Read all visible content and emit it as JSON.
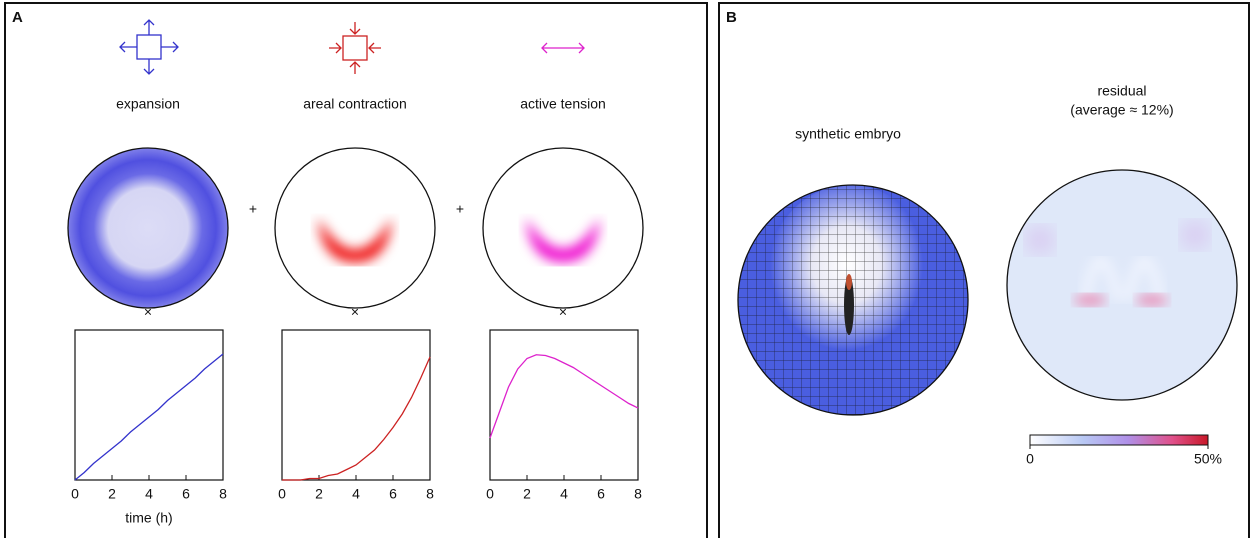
{
  "panel_a": {
    "label": "A",
    "plus_signs": [
      "+",
      "+"
    ],
    "times_signs": [
      "×",
      "×",
      "×"
    ]
  },
  "panel_b": {
    "label": "B",
    "synthetic_title": "synthetic embryo",
    "residual_title": [
      "residual",
      "(average ≈ 12%)"
    ],
    "colorbar": {
      "lim": [
        0,
        50
      ],
      "ticks": [
        0,
        {
          "value": 50,
          "label": "50%"
        }
      ]
    }
  },
  "chart_data": [
    {
      "type": "line",
      "title": "expansion",
      "xlabel": "time (h)",
      "color": "#3333cc",
      "x": [
        0,
        0.5,
        1,
        1.5,
        2,
        2.5,
        3,
        3.5,
        4,
        4.5,
        5,
        5.5,
        6,
        6.5,
        7,
        7.5,
        8
      ],
      "values": [
        0,
        0.05,
        0.11,
        0.16,
        0.21,
        0.26,
        0.32,
        0.37,
        0.42,
        0.47,
        0.53,
        0.58,
        0.63,
        0.68,
        0.74,
        0.79,
        0.84
      ],
      "xlim": [
        0,
        8
      ],
      "xticks": [
        0,
        2,
        4,
        6,
        8
      ],
      "ylim": [
        0,
        1
      ]
    },
    {
      "type": "line",
      "title": "areal contraction",
      "color": "#cc2222",
      "x": [
        0,
        0.5,
        1,
        1.5,
        2,
        2.5,
        3,
        3.5,
        4,
        4.5,
        5,
        5.5,
        6,
        6.5,
        7,
        7.5,
        8
      ],
      "values": [
        0,
        0,
        0,
        0.01,
        0.01,
        0.03,
        0.04,
        0.07,
        0.1,
        0.15,
        0.2,
        0.27,
        0.35,
        0.44,
        0.55,
        0.68,
        0.82
      ],
      "xlim": [
        0,
        8
      ],
      "xticks": [
        0,
        2,
        4,
        6,
        8
      ],
      "ylim": [
        0,
        1
      ]
    },
    {
      "type": "line",
      "title": "active tension",
      "color": "#dd22cc",
      "x": [
        0,
        0.5,
        1,
        1.5,
        2,
        2.5,
        3,
        3.5,
        4,
        4.5,
        5,
        5.5,
        6,
        6.5,
        7,
        7.5,
        8
      ],
      "values": [
        0.28,
        0.45,
        0.62,
        0.74,
        0.81,
        0.835,
        0.83,
        0.81,
        0.78,
        0.75,
        0.71,
        0.67,
        0.63,
        0.59,
        0.55,
        0.51,
        0.48
      ],
      "xlim": [
        0,
        8
      ],
      "xticks": [
        0,
        2,
        4,
        6,
        8
      ],
      "ylim": [
        0,
        1
      ]
    }
  ]
}
